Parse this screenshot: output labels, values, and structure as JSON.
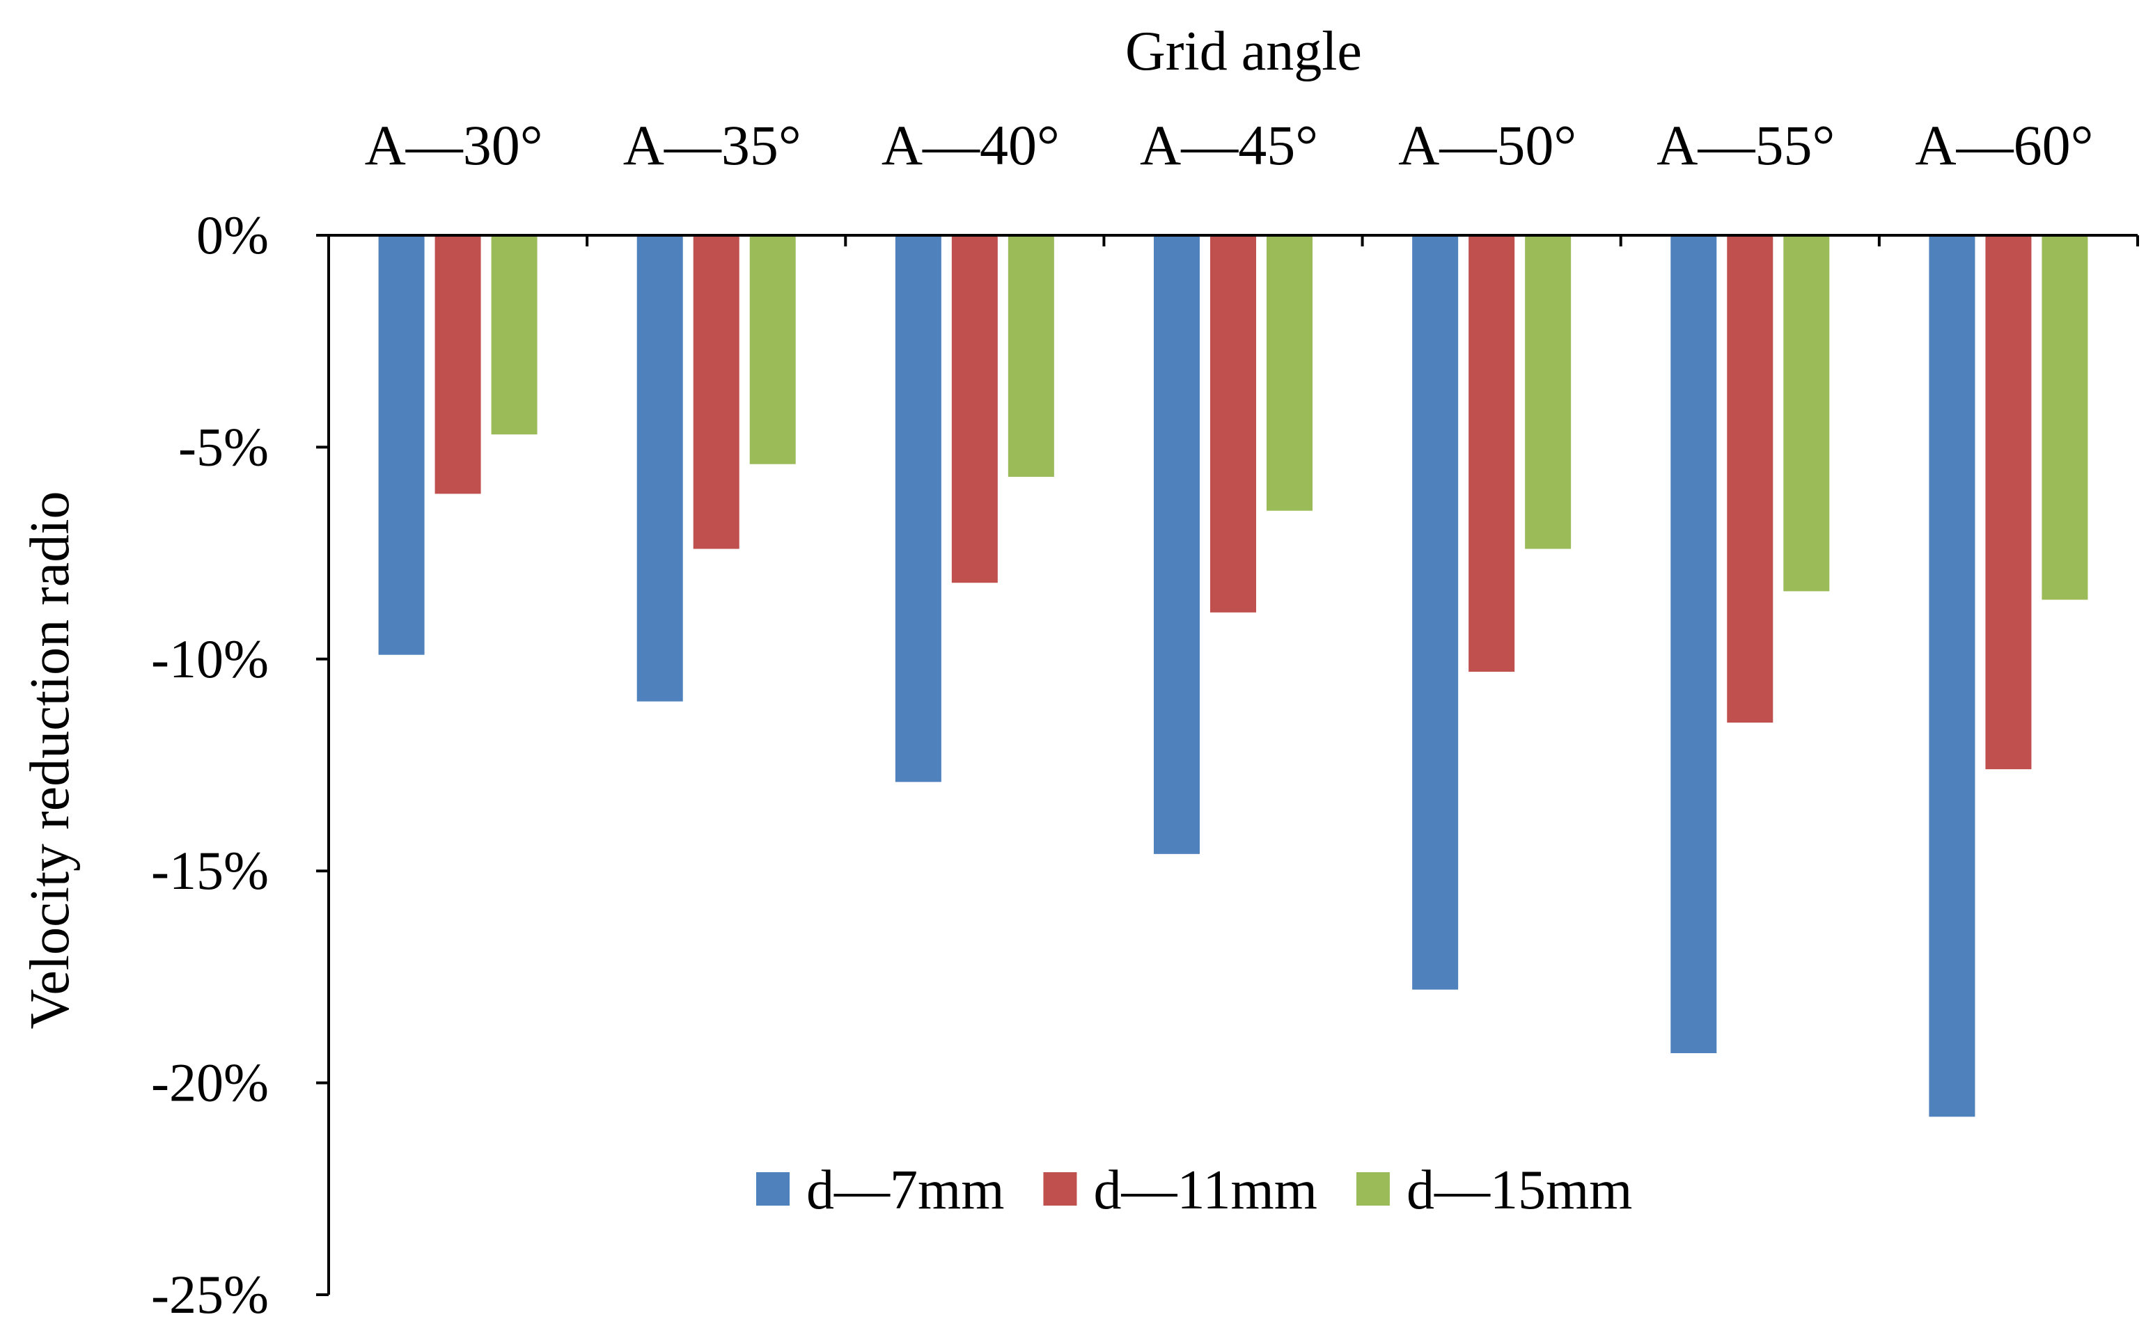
{
  "chart_data": {
    "type": "bar",
    "title": "Grid angle",
    "xlabel": "Grid angle",
    "ylabel": "Velocity reduction radio",
    "categories": [
      "A—30°",
      "A—35°",
      "A—40°",
      "A—45°",
      "A—50°",
      "A—55°",
      "A—60°"
    ],
    "series": [
      {
        "name": "d—7mm",
        "color": "#4F81BD",
        "values": [
          -9.9,
          -11.0,
          -12.9,
          -14.6,
          -17.8,
          -19.3,
          -20.8
        ]
      },
      {
        "name": "d—11mm",
        "color": "#C0504D",
        "values": [
          -6.1,
          -7.4,
          -8.2,
          -8.9,
          -10.3,
          -11.5,
          -12.6
        ]
      },
      {
        "name": "d—15mm",
        "color": "#9BBB59",
        "values": [
          -4.7,
          -5.4,
          -5.7,
          -6.5,
          -7.4,
          -8.4,
          -8.6
        ]
      }
    ],
    "ylim": [
      -25,
      0
    ],
    "yticks": [
      0,
      -5,
      -10,
      -15,
      -20,
      -25
    ],
    "ytick_labels": [
      "0%",
      "-5%",
      "-10%",
      "-15%",
      "-20%",
      "-25%"
    ],
    "grid": false,
    "legend_position": "bottom-center",
    "xaxis_position": "top"
  }
}
